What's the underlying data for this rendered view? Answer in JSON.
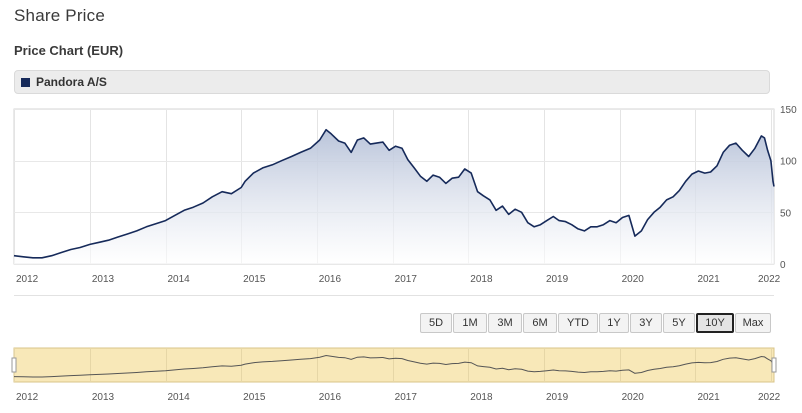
{
  "page": {
    "title": "Share Price"
  },
  "chart_title": "Price Chart (EUR)",
  "legend": {
    "label": "Pandora A/S",
    "color": "#162a5a"
  },
  "range_buttons": [
    {
      "label": "5D",
      "active": false
    },
    {
      "label": "1M",
      "active": false
    },
    {
      "label": "3M",
      "active": false
    },
    {
      "label": "6M",
      "active": false
    },
    {
      "label": "YTD",
      "active": false
    },
    {
      "label": "1Y",
      "active": false
    },
    {
      "label": "3Y",
      "active": false
    },
    {
      "label": "5Y",
      "active": false
    },
    {
      "label": "10Y",
      "active": true
    },
    {
      "label": "Max",
      "active": false
    }
  ],
  "chart_data": {
    "type": "area",
    "series": [
      {
        "name": "Pandora A/S",
        "points": [
          [
            "2012-01-01",
            8
          ],
          [
            "2012-02-15",
            7
          ],
          [
            "2012-04-01",
            6
          ],
          [
            "2012-05-15",
            6
          ],
          [
            "2012-07-01",
            8
          ],
          [
            "2012-08-15",
            11
          ],
          [
            "2012-10-01",
            14
          ],
          [
            "2012-11-15",
            16
          ],
          [
            "2013-01-01",
            19
          ],
          [
            "2013-02-15",
            21
          ],
          [
            "2013-04-01",
            23
          ],
          [
            "2013-05-15",
            26
          ],
          [
            "2013-07-01",
            29
          ],
          [
            "2013-08-15",
            32
          ],
          [
            "2013-10-01",
            36
          ],
          [
            "2013-11-15",
            39
          ],
          [
            "2014-01-01",
            42
          ],
          [
            "2014-02-15",
            47
          ],
          [
            "2014-04-01",
            52
          ],
          [
            "2014-05-15",
            55
          ],
          [
            "2014-07-01",
            59
          ],
          [
            "2014-08-15",
            65
          ],
          [
            "2014-10-01",
            70
          ],
          [
            "2014-11-15",
            68
          ],
          [
            "2015-01-01",
            74
          ],
          [
            "2015-01-20",
            80
          ],
          [
            "2015-03-01",
            88
          ],
          [
            "2015-04-15",
            93
          ],
          [
            "2015-06-01",
            96
          ],
          [
            "2015-07-15",
            100
          ],
          [
            "2015-09-01",
            104
          ],
          [
            "2015-10-15",
            108
          ],
          [
            "2015-12-01",
            112
          ],
          [
            "2016-01-15",
            120
          ],
          [
            "2016-02-15",
            130
          ],
          [
            "2016-03-10",
            126
          ],
          [
            "2016-04-15",
            119
          ],
          [
            "2016-05-15",
            117
          ],
          [
            "2016-06-15",
            108
          ],
          [
            "2016-07-15",
            120
          ],
          [
            "2016-08-15",
            122
          ],
          [
            "2016-09-15",
            116
          ],
          [
            "2016-10-15",
            117
          ],
          [
            "2016-11-15",
            118
          ],
          [
            "2016-12-15",
            110
          ],
          [
            "2017-01-15",
            114
          ],
          [
            "2017-02-15",
            112
          ],
          [
            "2017-03-15",
            101
          ],
          [
            "2017-04-15",
            93
          ],
          [
            "2017-05-15",
            85
          ],
          [
            "2017-06-15",
            80
          ],
          [
            "2017-07-15",
            86
          ],
          [
            "2017-08-15",
            84
          ],
          [
            "2017-09-15",
            78
          ],
          [
            "2017-10-15",
            83
          ],
          [
            "2017-11-15",
            84
          ],
          [
            "2017-12-15",
            92
          ],
          [
            "2018-01-15",
            88
          ],
          [
            "2018-02-15",
            70
          ],
          [
            "2018-03-15",
            66
          ],
          [
            "2018-04-15",
            62
          ],
          [
            "2018-05-15",
            52
          ],
          [
            "2018-06-15",
            56
          ],
          [
            "2018-07-15",
            48
          ],
          [
            "2018-08-15",
            53
          ],
          [
            "2018-09-15",
            50
          ],
          [
            "2018-10-15",
            40
          ],
          [
            "2018-11-15",
            36
          ],
          [
            "2018-12-15",
            38
          ],
          [
            "2019-01-15",
            42
          ],
          [
            "2019-02-15",
            46
          ],
          [
            "2019-03-15",
            42
          ],
          [
            "2019-04-15",
            41
          ],
          [
            "2019-05-15",
            38
          ],
          [
            "2019-06-15",
            34
          ],
          [
            "2019-07-15",
            32
          ],
          [
            "2019-08-15",
            36
          ],
          [
            "2019-09-15",
            36
          ],
          [
            "2019-10-15",
            38
          ],
          [
            "2019-11-15",
            42
          ],
          [
            "2019-12-15",
            40
          ],
          [
            "2020-01-15",
            45
          ],
          [
            "2020-02-15",
            47
          ],
          [
            "2020-03-15",
            27
          ],
          [
            "2020-04-15",
            32
          ],
          [
            "2020-05-15",
            43
          ],
          [
            "2020-06-15",
            50
          ],
          [
            "2020-07-15",
            55
          ],
          [
            "2020-08-15",
            62
          ],
          [
            "2020-09-15",
            65
          ],
          [
            "2020-10-15",
            71
          ],
          [
            "2020-11-15",
            80
          ],
          [
            "2020-12-15",
            87
          ],
          [
            "2021-01-15",
            90
          ],
          [
            "2021-02-15",
            88
          ],
          [
            "2021-03-15",
            89
          ],
          [
            "2021-04-15",
            95
          ],
          [
            "2021-05-15",
            108
          ],
          [
            "2021-06-15",
            115
          ],
          [
            "2021-07-15",
            117
          ],
          [
            "2021-08-15",
            110
          ],
          [
            "2021-09-15",
            104
          ],
          [
            "2021-10-15",
            112
          ],
          [
            "2021-11-15",
            124
          ],
          [
            "2021-11-30",
            122
          ],
          [
            "2021-12-15",
            110
          ],
          [
            "2021-12-31",
            100
          ],
          [
            "2022-01-10",
            80
          ],
          [
            "2022-01-15",
            75
          ]
        ]
      }
    ],
    "x_ticks": [
      "2012",
      "2013",
      "2014",
      "2015",
      "2016",
      "2017",
      "2018",
      "2019",
      "2020",
      "2021",
      "2022"
    ],
    "y_ticks": [
      0,
      50,
      100,
      150
    ],
    "ylim": [
      0,
      150
    ],
    "xlim": [
      "2012-01-01",
      "2022-01-15"
    ],
    "y_axis_position": "right",
    "grid": true,
    "line_color": "#162a5a",
    "area_color_top": "#b6c1d8",
    "navigator_fill": "#f8e8b8"
  }
}
